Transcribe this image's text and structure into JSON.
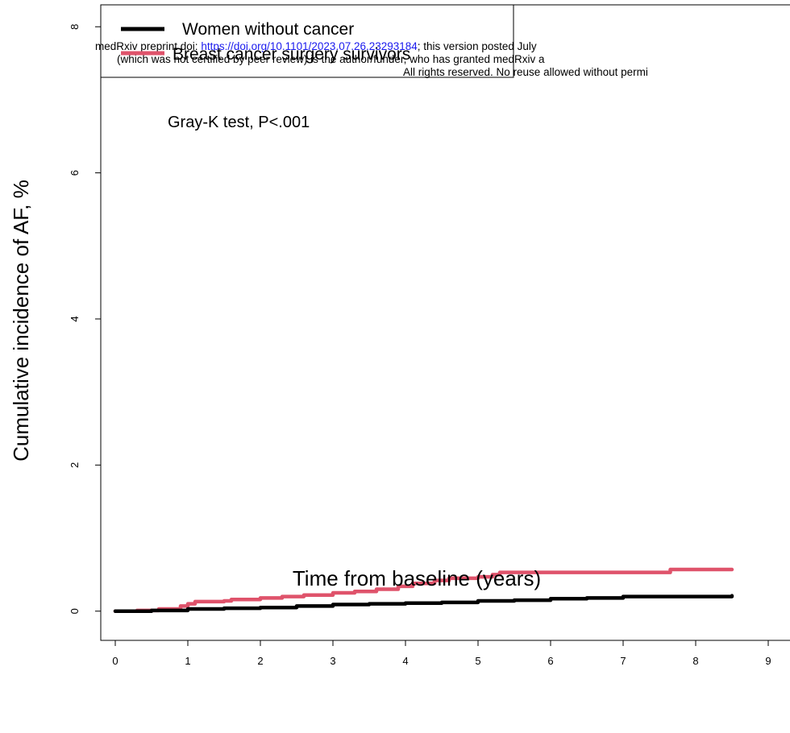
{
  "chart_data": {
    "type": "line",
    "title": "",
    "xlabel": "Time from baseline (years)",
    "ylabel": "Cumulative incidence of AF, %",
    "xlim": [
      -0.2,
      9.3
    ],
    "ylim": [
      -0.4,
      8.3
    ],
    "x_ticks": [
      0,
      1,
      2,
      3,
      4,
      5,
      6,
      7,
      8,
      9
    ],
    "y_ticks": [
      0,
      2,
      4,
      6,
      8
    ],
    "legend_position": "top-left",
    "annotation": "Gray-K test, P<.001",
    "series": [
      {
        "name": "Women without cancer",
        "color": "#000000",
        "x": [
          0,
          0.5,
          1.0,
          1.5,
          2.0,
          2.5,
          3.0,
          3.5,
          4.0,
          4.5,
          5.0,
          5.5,
          6.0,
          6.5,
          6.85,
          7.0,
          7.5,
          8.0,
          8.5
        ],
        "y": [
          0,
          0.01,
          0.03,
          0.04,
          0.05,
          0.07,
          0.09,
          0.1,
          0.11,
          0.12,
          0.14,
          0.15,
          0.17,
          0.18,
          0.18,
          0.2,
          0.2,
          0.2,
          0.21
        ]
      },
      {
        "name": "Breast cancer surgery survivors",
        "color": "#df536b",
        "x": [
          0,
          0.3,
          0.6,
          0.9,
          1.0,
          1.1,
          1.5,
          1.6,
          2.0,
          2.3,
          2.6,
          3.0,
          3.3,
          3.6,
          3.9,
          4.1,
          4.4,
          4.6,
          5.0,
          5.2,
          5.3,
          6.0,
          7.0,
          7.6,
          7.65,
          8.5
        ],
        "y": [
          0,
          0.01,
          0.03,
          0.07,
          0.1,
          0.13,
          0.14,
          0.16,
          0.18,
          0.2,
          0.22,
          0.25,
          0.27,
          0.3,
          0.34,
          0.38,
          0.42,
          0.45,
          0.47,
          0.5,
          0.53,
          0.53,
          0.53,
          0.53,
          0.57,
          0.57
        ]
      }
    ]
  },
  "watermark": {
    "line1_prefix": "medRxiv preprint doi: ",
    "line1_link": "https://doi.org/10.1101/2023.07.26.23293184",
    "line1_suffix": "; this version posted July",
    "line2": "(which was not certified by peer review) is the author/funder, who has granted medRxiv a",
    "line3": "All rights reserved. No reuse allowed without permi"
  }
}
